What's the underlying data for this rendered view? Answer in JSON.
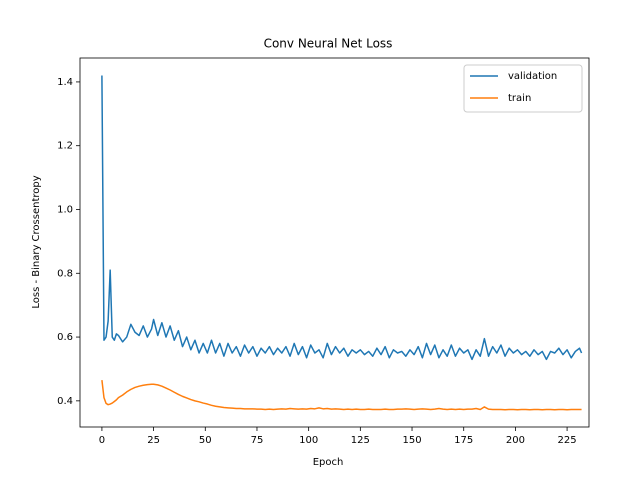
{
  "chart_data": {
    "type": "line",
    "title": "Conv Neural Net Loss",
    "x_label": "Epoch",
    "y_label": "Loss - Binary Crossentropy",
    "x": [
      0,
      1,
      2,
      3,
      4,
      5,
      6,
      7,
      8,
      10,
      12,
      14,
      16,
      18,
      20,
      22,
      24,
      25,
      27,
      29,
      31,
      33,
      35,
      37,
      39,
      41,
      43,
      45,
      47,
      49,
      51,
      53,
      55,
      57,
      59,
      61,
      63,
      65,
      67,
      69,
      71,
      73,
      75,
      77,
      79,
      81,
      83,
      85,
      87,
      89,
      91,
      93,
      95,
      97,
      99,
      101,
      103,
      105,
      107,
      109,
      111,
      113,
      115,
      117,
      119,
      121,
      123,
      125,
      127,
      129,
      131,
      133,
      135,
      137,
      139,
      141,
      143,
      145,
      147,
      149,
      151,
      153,
      155,
      157,
      159,
      161,
      163,
      165,
      167,
      169,
      171,
      173,
      175,
      177,
      179,
      181,
      183,
      185,
      187,
      189,
      191,
      193,
      195,
      197,
      199,
      201,
      203,
      205,
      207,
      209,
      211,
      213,
      215,
      217,
      219,
      221,
      223,
      225,
      227,
      229,
      231,
      232
    ],
    "series": [
      {
        "name": "validation",
        "color": "#1f77b4",
        "values": [
          1.42,
          0.59,
          0.6,
          0.65,
          0.81,
          0.6,
          0.59,
          0.61,
          0.605,
          0.585,
          0.6,
          0.64,
          0.615,
          0.605,
          0.635,
          0.6,
          0.625,
          0.655,
          0.605,
          0.645,
          0.6,
          0.635,
          0.59,
          0.62,
          0.57,
          0.6,
          0.56,
          0.59,
          0.55,
          0.58,
          0.55,
          0.59,
          0.55,
          0.58,
          0.54,
          0.58,
          0.55,
          0.57,
          0.54,
          0.575,
          0.55,
          0.57,
          0.54,
          0.565,
          0.55,
          0.57,
          0.545,
          0.565,
          0.55,
          0.57,
          0.54,
          0.58,
          0.545,
          0.57,
          0.535,
          0.575,
          0.55,
          0.56,
          0.535,
          0.58,
          0.545,
          0.57,
          0.55,
          0.565,
          0.54,
          0.56,
          0.55,
          0.56,
          0.545,
          0.555,
          0.54,
          0.565,
          0.545,
          0.57,
          0.535,
          0.56,
          0.55,
          0.555,
          0.54,
          0.56,
          0.545,
          0.57,
          0.535,
          0.58,
          0.545,
          0.575,
          0.535,
          0.56,
          0.54,
          0.575,
          0.54,
          0.565,
          0.55,
          0.56,
          0.53,
          0.56,
          0.54,
          0.595,
          0.54,
          0.57,
          0.55,
          0.575,
          0.54,
          0.565,
          0.55,
          0.56,
          0.545,
          0.555,
          0.54,
          0.56,
          0.545,
          0.555,
          0.53,
          0.555,
          0.55,
          0.565,
          0.545,
          0.56,
          0.535,
          0.555,
          0.565,
          0.55
        ]
      },
      {
        "name": "train",
        "color": "#ff7f0e",
        "values": [
          0.465,
          0.41,
          0.392,
          0.388,
          0.39,
          0.393,
          0.398,
          0.403,
          0.41,
          0.418,
          0.428,
          0.436,
          0.442,
          0.446,
          0.449,
          0.451,
          0.452,
          0.452,
          0.45,
          0.446,
          0.44,
          0.434,
          0.427,
          0.42,
          0.414,
          0.409,
          0.404,
          0.4,
          0.397,
          0.393,
          0.39,
          0.386,
          0.383,
          0.381,
          0.379,
          0.378,
          0.377,
          0.376,
          0.376,
          0.375,
          0.375,
          0.375,
          0.374,
          0.374,
          0.373,
          0.374,
          0.373,
          0.374,
          0.375,
          0.374,
          0.376,
          0.375,
          0.374,
          0.375,
          0.374,
          0.376,
          0.375,
          0.378,
          0.375,
          0.376,
          0.374,
          0.375,
          0.374,
          0.373,
          0.374,
          0.373,
          0.374,
          0.373,
          0.373,
          0.374,
          0.373,
          0.373,
          0.373,
          0.374,
          0.373,
          0.373,
          0.374,
          0.374,
          0.375,
          0.374,
          0.373,
          0.374,
          0.375,
          0.374,
          0.373,
          0.374,
          0.376,
          0.374,
          0.373,
          0.374,
          0.373,
          0.374,
          0.373,
          0.374,
          0.374,
          0.376,
          0.373,
          0.381,
          0.374,
          0.373,
          0.373,
          0.373,
          0.372,
          0.373,
          0.373,
          0.372,
          0.373,
          0.373,
          0.372,
          0.373,
          0.373,
          0.372,
          0.373,
          0.373,
          0.372,
          0.373,
          0.373,
          0.372,
          0.373,
          0.373,
          0.373,
          0.373
        ]
      }
    ],
    "xlim": [
      -10.6,
      235.6
    ],
    "ylim": [
      0.318,
      1.475
    ],
    "xticks": [
      0,
      25,
      50,
      75,
      100,
      125,
      150,
      175,
      200,
      225
    ],
    "yticks": [
      0.4,
      0.6,
      0.8,
      {
        "value": 1,
        "label": "1.0"
      },
      1.2,
      1.4
    ],
    "grid": false,
    "legend": "upper right"
  }
}
